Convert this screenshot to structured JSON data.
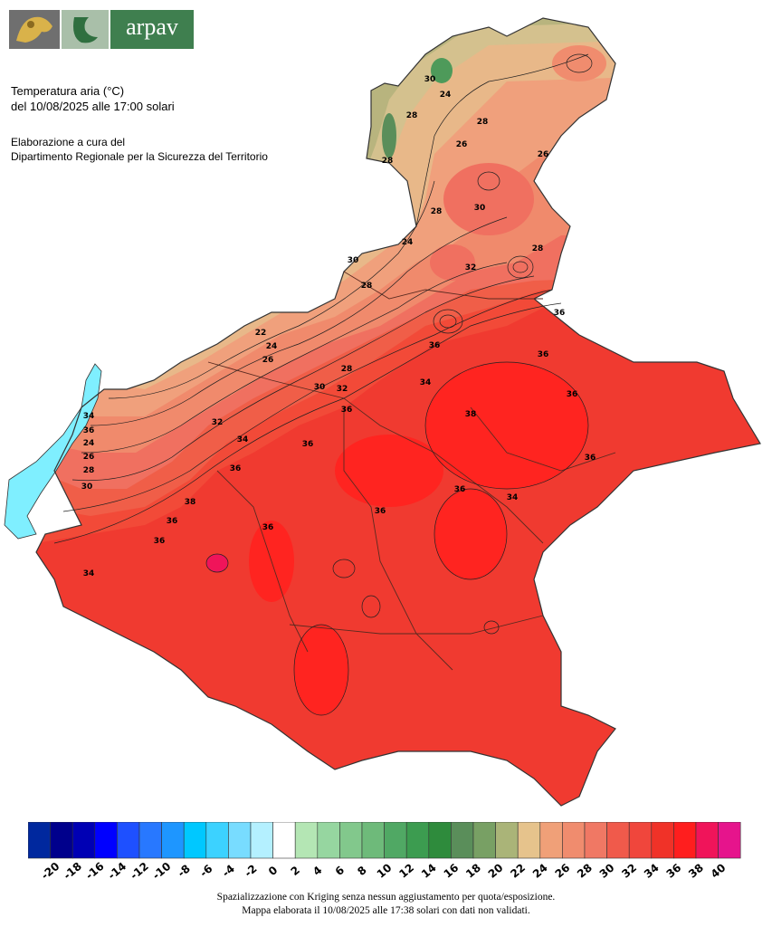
{
  "logo": {
    "text": "arpav"
  },
  "header": {
    "title_line1": "Temperatura aria (°C)",
    "title_line2": "del 10/08/2025 alle 17:00 solari",
    "org_line1": "Elaborazione a cura del",
    "org_line2": "Dipartimento Regionale per la Sicurezza del Territorio"
  },
  "legend": {
    "labels": [
      "-20",
      "-18",
      "-16",
      "-14",
      "-12",
      "-10",
      "-8",
      "-6",
      "-4",
      "-2",
      "0",
      "2",
      "4",
      "6",
      "8",
      "10",
      "12",
      "14",
      "16",
      "18",
      "20",
      "22",
      "24",
      "26",
      "28",
      "30",
      "32",
      "34",
      "36",
      "38",
      "40"
    ],
    "colors": [
      "#00289e",
      "#00008c",
      "#0000b4",
      "#0000ff",
      "#1e50ff",
      "#2878ff",
      "#1e96ff",
      "#00c8ff",
      "#3cd2ff",
      "#78dcff",
      "#b4f0ff",
      "#ffffff",
      "#b4e6b4",
      "#96d6a0",
      "#82c88c",
      "#6eba7a",
      "#50a864",
      "#3c9c50",
      "#2e8b3c",
      "#5a8e5a",
      "#78a064",
      "#aab478",
      "#e6c38c",
      "#f0a078",
      "#f08c6e",
      "#f07864",
      "#f05a4b",
      "#f0463c",
      "#f03228",
      "#ff1e1e",
      "#f0145a",
      "#e6148c"
    ]
  },
  "map": {
    "contour_labels": [
      "30",
      "24",
      "28",
      "28",
      "26",
      "28",
      "26",
      "24",
      "28",
      "30",
      "28",
      "32",
      "28",
      "30",
      "22",
      "24",
      "26",
      "28",
      "30",
      "32",
      "34",
      "36",
      "34",
      "36",
      "24",
      "26",
      "28",
      "30",
      "32",
      "34",
      "36",
      "38",
      "36",
      "36",
      "34",
      "36",
      "36",
      "36",
      "36",
      "38",
      "36",
      "36",
      "34",
      "36",
      "36",
      "36"
    ]
  },
  "footer": {
    "note1": "Spazializzazione con Kriging senza nessun aggiustamento per quota/esposizione.",
    "note2": "Mappa elaborata il 10/08/2025 alle 17:38 solari con dati non validati."
  }
}
